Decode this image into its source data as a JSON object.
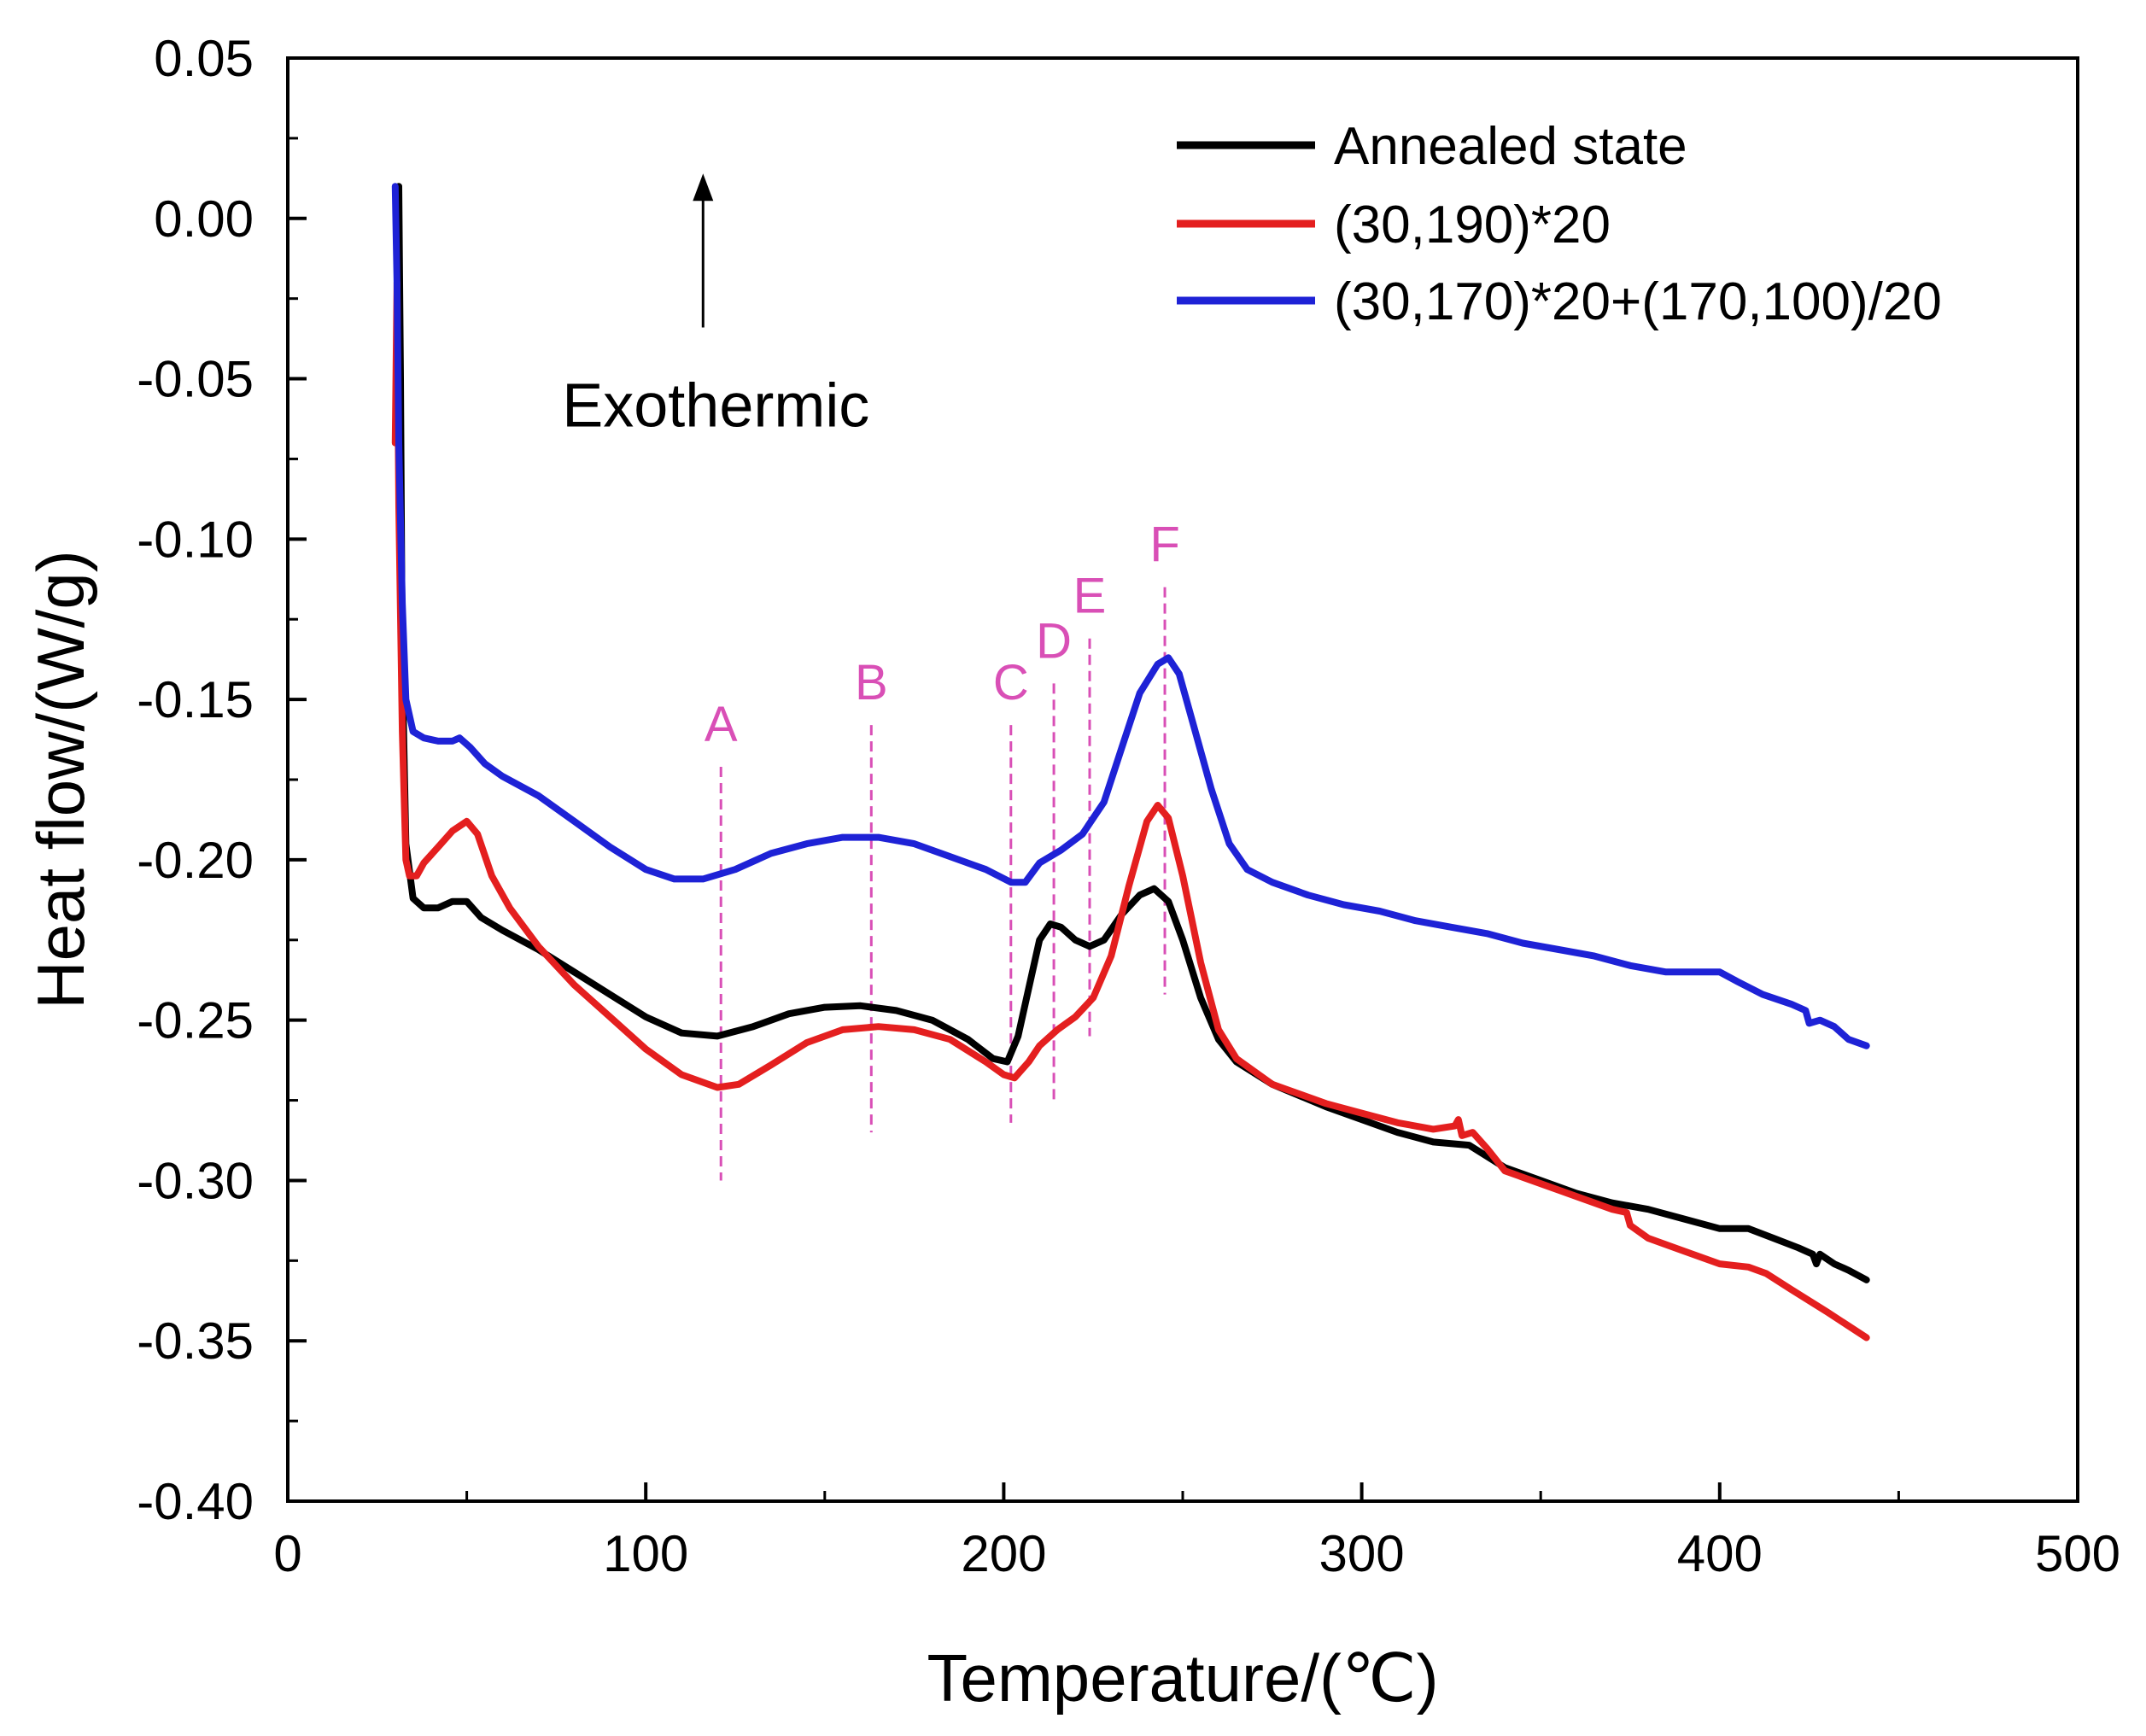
{
  "chart_data": {
    "type": "line",
    "title": "",
    "xlabel": "Temperature/(℃)",
    "ylabel": "Heat flow/(W/g)",
    "xlim": [
      0,
      500
    ],
    "ylim": [
      -0.4,
      0.05
    ],
    "x_ticks": [
      0,
      100,
      200,
      300,
      400,
      500
    ],
    "x_tick_labels": [
      "0",
      "100",
      "200",
      "300",
      "400",
      "500"
    ],
    "y_ticks": [
      0.05,
      0.0,
      -0.05,
      -0.1,
      -0.15,
      -0.2,
      -0.25,
      -0.3,
      -0.35,
      -0.4
    ],
    "y_tick_labels": [
      "0.05",
      "0.00",
      "-0.05",
      "-0.10",
      "-0.15",
      "-0.20",
      "-0.25",
      "-0.30",
      "-0.35",
      "-0.40"
    ],
    "grid": false,
    "legend_position": "top-right",
    "series": [
      {
        "name": "Annealed state",
        "color": "#000000",
        "points": [
          [
            30.5,
            0.0
          ],
          [
            31,
            0.01
          ],
          [
            31.5,
            -0.05
          ],
          [
            32,
            -0.14
          ],
          [
            33,
            -0.195
          ],
          [
            35,
            -0.212
          ],
          [
            38,
            -0.215
          ],
          [
            42,
            -0.215
          ],
          [
            46,
            -0.213
          ],
          [
            50,
            -0.213
          ],
          [
            54,
            -0.218
          ],
          [
            60,
            -0.222
          ],
          [
            70,
            -0.228
          ],
          [
            80,
            -0.235
          ],
          [
            90,
            -0.242
          ],
          [
            100,
            -0.249
          ],
          [
            110,
            -0.254
          ],
          [
            120,
            -0.255
          ],
          [
            130,
            -0.252
          ],
          [
            140,
            -0.248
          ],
          [
            150,
            -0.246
          ],
          [
            160,
            -0.2455
          ],
          [
            170,
            -0.247
          ],
          [
            180,
            -0.25
          ],
          [
            190,
            -0.256
          ],
          [
            197,
            -0.262
          ],
          [
            201,
            -0.263
          ],
          [
            204,
            -0.255
          ],
          [
            207,
            -0.24
          ],
          [
            210,
            -0.225
          ],
          [
            213,
            -0.22
          ],
          [
            216,
            -0.221
          ],
          [
            220,
            -0.225
          ],
          [
            224,
            -0.227
          ],
          [
            228,
            -0.225
          ],
          [
            233,
            -0.217
          ],
          [
            238,
            -0.211
          ],
          [
            242,
            -0.209
          ],
          [
            246,
            -0.213
          ],
          [
            250,
            -0.225
          ],
          [
            255,
            -0.243
          ],
          [
            260,
            -0.256
          ],
          [
            265,
            -0.263
          ],
          [
            275,
            -0.27
          ],
          [
            290,
            -0.277
          ],
          [
            300,
            -0.281
          ],
          [
            310,
            -0.285
          ],
          [
            320,
            -0.288
          ],
          [
            330,
            -0.289
          ],
          [
            340,
            -0.296
          ],
          [
            350,
            -0.3
          ],
          [
            360,
            -0.304
          ],
          [
            370,
            -0.307
          ],
          [
            380,
            -0.309
          ],
          [
            390,
            -0.312
          ],
          [
            400,
            -0.315
          ],
          [
            408,
            -0.315
          ],
          [
            415,
            -0.318
          ],
          [
            422,
            -0.321
          ],
          [
            426,
            -0.323
          ],
          [
            427,
            -0.326
          ],
          [
            428,
            -0.323
          ],
          [
            432,
            -0.326
          ],
          [
            436,
            -0.328
          ],
          [
            441,
            -0.331
          ]
        ]
      },
      {
        "name": "(30,190)*20",
        "color": "#e41f1f",
        "points": [
          [
            30,
            -0.07
          ],
          [
            30.5,
            -0.02
          ],
          [
            31,
            -0.09
          ],
          [
            32,
            -0.16
          ],
          [
            33,
            -0.2
          ],
          [
            34,
            -0.205
          ],
          [
            36,
            -0.205
          ],
          [
            38,
            -0.201
          ],
          [
            42,
            -0.196
          ],
          [
            46,
            -0.191
          ],
          [
            50,
            -0.188
          ],
          [
            53,
            -0.192
          ],
          [
            57,
            -0.205
          ],
          [
            62,
            -0.215
          ],
          [
            70,
            -0.227
          ],
          [
            80,
            -0.239
          ],
          [
            90,
            -0.249
          ],
          [
            100,
            -0.259
          ],
          [
            110,
            -0.267
          ],
          [
            120,
            -0.271
          ],
          [
            126,
            -0.27
          ],
          [
            135,
            -0.264
          ],
          [
            145,
            -0.257
          ],
          [
            155,
            -0.253
          ],
          [
            165,
            -0.252
          ],
          [
            175,
            -0.253
          ],
          [
            185,
            -0.256
          ],
          [
            195,
            -0.263
          ],
          [
            200,
            -0.267
          ],
          [
            203,
            -0.268
          ],
          [
            207,
            -0.263
          ],
          [
            210,
            -0.258
          ],
          [
            215,
            -0.253
          ],
          [
            220,
            -0.249
          ],
          [
            225,
            -0.243
          ],
          [
            230,
            -0.23
          ],
          [
            235,
            -0.208
          ],
          [
            240,
            -0.188
          ],
          [
            243,
            -0.183
          ],
          [
            246,
            -0.187
          ],
          [
            250,
            -0.205
          ],
          [
            255,
            -0.232
          ],
          [
            260,
            -0.253
          ],
          [
            265,
            -0.262
          ],
          [
            275,
            -0.27
          ],
          [
            290,
            -0.276
          ],
          [
            300,
            -0.279
          ],
          [
            310,
            -0.282
          ],
          [
            320,
            -0.284
          ],
          [
            326,
            -0.283
          ],
          [
            327,
            -0.281
          ],
          [
            328,
            -0.286
          ],
          [
            331,
            -0.285
          ],
          [
            335,
            -0.29
          ],
          [
            340,
            -0.297
          ],
          [
            350,
            -0.301
          ],
          [
            360,
            -0.305
          ],
          [
            370,
            -0.309
          ],
          [
            374,
            -0.31
          ],
          [
            375,
            -0.314
          ],
          [
            380,
            -0.318
          ],
          [
            390,
            -0.322
          ],
          [
            400,
            -0.326
          ],
          [
            408,
            -0.327
          ],
          [
            413,
            -0.329
          ],
          [
            420,
            -0.334
          ],
          [
            430,
            -0.341
          ],
          [
            441,
            -0.349
          ]
        ]
      },
      {
        "name": "(30,170)*20+(170,100)/20",
        "color": "#1e22d6",
        "points": [
          [
            30,
            0.01
          ],
          [
            30.5,
            -0.02
          ],
          [
            31,
            -0.07
          ],
          [
            32,
            -0.12
          ],
          [
            33,
            -0.15
          ],
          [
            35,
            -0.16
          ],
          [
            38,
            -0.162
          ],
          [
            42,
            -0.163
          ],
          [
            46,
            -0.163
          ],
          [
            48,
            -0.162
          ],
          [
            51,
            -0.165
          ],
          [
            55,
            -0.17
          ],
          [
            60,
            -0.174
          ],
          [
            70,
            -0.18
          ],
          [
            80,
            -0.188
          ],
          [
            90,
            -0.196
          ],
          [
            100,
            -0.203
          ],
          [
            108,
            -0.206
          ],
          [
            116,
            -0.206
          ],
          [
            125,
            -0.203
          ],
          [
            135,
            -0.198
          ],
          [
            145,
            -0.195
          ],
          [
            155,
            -0.193
          ],
          [
            165,
            -0.193
          ],
          [
            175,
            -0.195
          ],
          [
            185,
            -0.199
          ],
          [
            195,
            -0.203
          ],
          [
            202,
            -0.207
          ],
          [
            206,
            -0.207
          ],
          [
            210,
            -0.201
          ],
          [
            216,
            -0.197
          ],
          [
            222,
            -0.192
          ],
          [
            228,
            -0.182
          ],
          [
            233,
            -0.165
          ],
          [
            238,
            -0.148
          ],
          [
            243,
            -0.139
          ],
          [
            246,
            -0.137
          ],
          [
            249,
            -0.142
          ],
          [
            253,
            -0.158
          ],
          [
            258,
            -0.178
          ],
          [
            263,
            -0.195
          ],
          [
            268,
            -0.203
          ],
          [
            275,
            -0.207
          ],
          [
            285,
            -0.211
          ],
          [
            295,
            -0.214
          ],
          [
            305,
            -0.216
          ],
          [
            315,
            -0.219
          ],
          [
            325,
            -0.221
          ],
          [
            335,
            -0.223
          ],
          [
            345,
            -0.226
          ],
          [
            355,
            -0.228
          ],
          [
            365,
            -0.23
          ],
          [
            375,
            -0.233
          ],
          [
            385,
            -0.235
          ],
          [
            393,
            -0.235
          ],
          [
            400,
            -0.235
          ],
          [
            405,
            -0.238
          ],
          [
            412,
            -0.242
          ],
          [
            420,
            -0.245
          ],
          [
            424,
            -0.247
          ],
          [
            425,
            -0.251
          ],
          [
            428,
            -0.25
          ],
          [
            432,
            -0.252
          ],
          [
            436,
            -0.256
          ],
          [
            441,
            -0.258
          ]
        ]
      }
    ],
    "reference_lines": [
      {
        "label": "A",
        "x": 121,
        "y_top": -0.171,
        "y_bottom": -0.3,
        "label_y": -0.163
      },
      {
        "label": "B",
        "x": 163,
        "y_top": -0.158,
        "y_bottom": -0.285,
        "label_y": -0.15
      },
      {
        "label": "C",
        "x": 202,
        "y_top": -0.158,
        "y_bottom": -0.282,
        "label_y": -0.15
      },
      {
        "label": "D",
        "x": 214,
        "y_top": -0.145,
        "y_bottom": -0.275,
        "label_y": -0.137
      },
      {
        "label": "E",
        "x": 224,
        "y_top": -0.131,
        "y_bottom": -0.255,
        "label_y": -0.123
      },
      {
        "label": "F",
        "x": 245,
        "y_top": -0.115,
        "y_bottom": -0.242,
        "label_y": -0.107
      }
    ],
    "reference_line_color": "#d94fb6",
    "annotations": [
      {
        "text": "Exothermic",
        "x": 116,
        "y": -0.058
      }
    ],
    "arrow": {
      "x": 116,
      "y_from": -0.034,
      "y_to": 0.014
    }
  }
}
